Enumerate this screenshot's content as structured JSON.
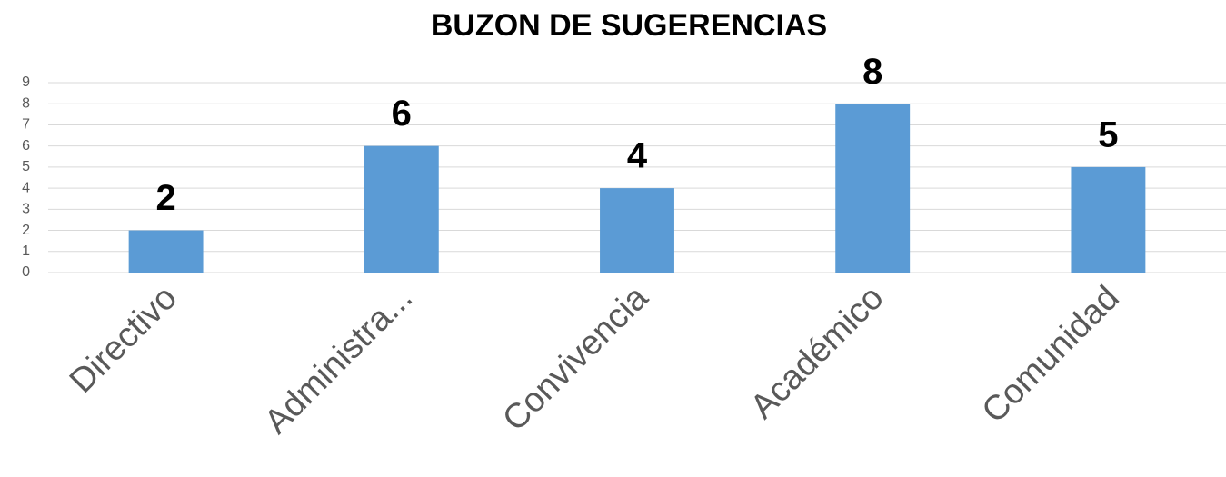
{
  "chart_data": {
    "type": "bar",
    "title": "BUZON DE SUGERENCIAS",
    "categories": [
      "Directivo",
      "Administra...",
      "Convivencia",
      "Académico",
      "Comunidad"
    ],
    "values": [
      2,
      6,
      4,
      8,
      5
    ],
    "color": "#5b9bd5",
    "ylim": [
      0,
      9
    ],
    "yticks": [
      0,
      1,
      2,
      3,
      4,
      5,
      6,
      7,
      8,
      9
    ],
    "grid": true
  }
}
